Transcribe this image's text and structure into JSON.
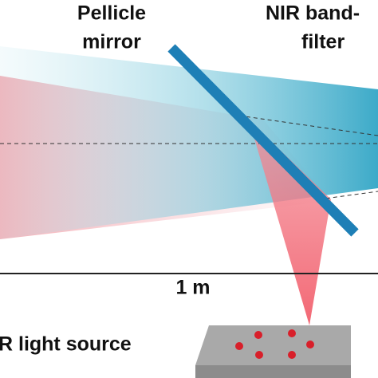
{
  "labels": {
    "pellicle_line1": "Pellicle",
    "pellicle_line2": "mirror",
    "filter_line1": "NIR band-",
    "filter_line2": "filter",
    "scale": "1 m",
    "source": "R light source"
  }
}
